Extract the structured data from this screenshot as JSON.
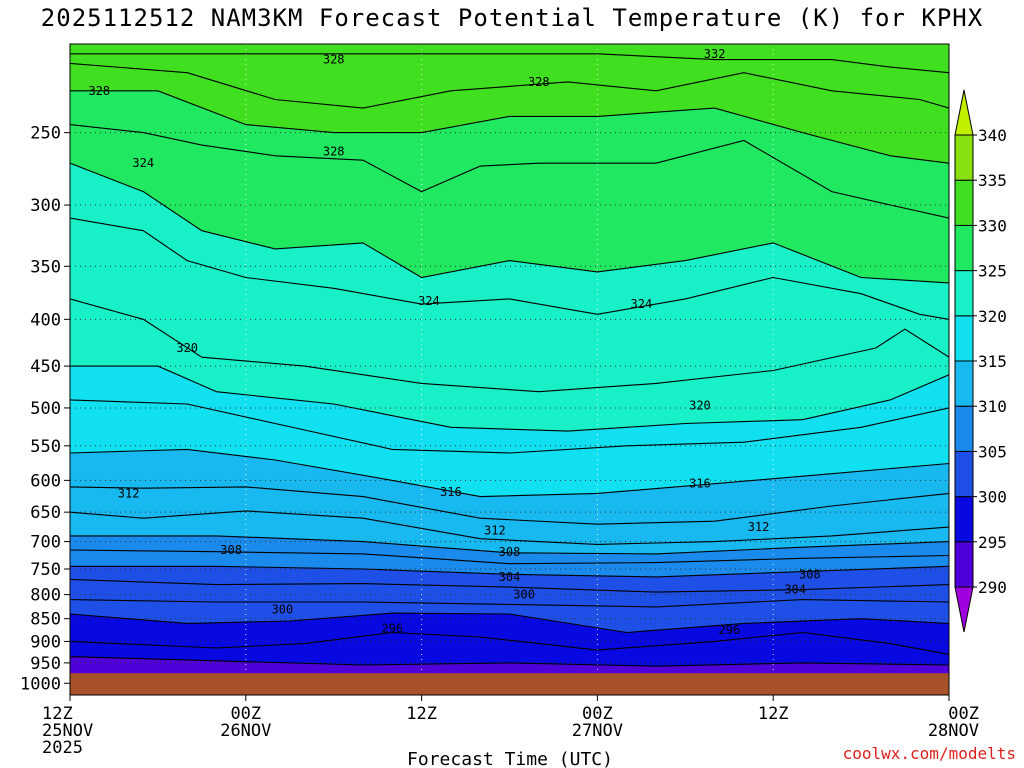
{
  "title": "2025112512 NAM3KM Forecast Potential Temperature (K) for KPHX",
  "credit": "coolwx.com/modelts",
  "chart_data": {
    "type": "heatmap",
    "title": "2025112512 NAM3KM Forecast Potential Temperature (K) for KPHX",
    "xlabel": "Forecast Time (UTC)",
    "ylabel": "",
    "x_ticks": [
      {
        "hour": 0,
        "lines": [
          "12Z",
          "25NOV",
          "2025"
        ]
      },
      {
        "hour": 12,
        "lines": [
          "00Z",
          "26NOV"
        ]
      },
      {
        "hour": 24,
        "lines": [
          "12Z"
        ]
      },
      {
        "hour": 36,
        "lines": [
          "00Z",
          "27NOV"
        ]
      },
      {
        "hour": 48,
        "lines": [
          "12Z"
        ]
      },
      {
        "hour": 60,
        "lines": [
          "00Z",
          "28NOV"
        ]
      }
    ],
    "xlim_hours": [
      0,
      60
    ],
    "y_ticks": [
      250,
      300,
      350,
      400,
      450,
      500,
      550,
      600,
      650,
      700,
      750,
      800,
      850,
      900,
      950,
      1000
    ],
    "ylim_hpa": [
      200,
      1030
    ],
    "grid": true,
    "colorbar": {
      "levels": [
        290,
        295,
        300,
        305,
        310,
        315,
        320,
        325,
        330,
        335,
        340
      ],
      "labels": [
        "290",
        "295",
        "300",
        "305",
        "310",
        "315",
        "320",
        "325",
        "330",
        "335",
        "340"
      ],
      "colors": [
        "#a000e0",
        "#5000d8",
        "#0808e0",
        "#1e50e8",
        "#1a8aec",
        "#18b8f0",
        "#10e0f0",
        "#18f0c8",
        "#20e860",
        "#40e020",
        "#88e010",
        "#c0f000"
      ]
    },
    "ground_level_hpa": 975,
    "ground_color": "#a8522a",
    "contour_labels": [
      {
        "text": "328",
        "hour": 18.0,
        "hpa": 262
      },
      {
        "text": "324",
        "hour": 24.5,
        "hpa": 382
      },
      {
        "text": "324",
        "hour": 39.0,
        "hpa": 385
      },
      {
        "text": "320",
        "hour": 43.0,
        "hpa": 497
      },
      {
        "text": "316",
        "hour": 26.0,
        "hpa": 618
      },
      {
        "text": "316",
        "hour": 43.0,
        "hpa": 605
      },
      {
        "text": "312",
        "hour": 29.0,
        "hpa": 681
      },
      {
        "text": "312",
        "hour": 47.0,
        "hpa": 675
      },
      {
        "text": "308",
        "hour": 30.0,
        "hpa": 719
      },
      {
        "text": "308",
        "hour": 50.5,
        "hpa": 760
      },
      {
        "text": "304",
        "hour": 30.0,
        "hpa": 765
      },
      {
        "text": "304",
        "hour": 49.5,
        "hpa": 790
      },
      {
        "text": "300",
        "hour": 31.0,
        "hpa": 800
      },
      {
        "text": "300",
        "hour": 14.5,
        "hpa": 830
      },
      {
        "text": "296",
        "hour": 22.0,
        "hpa": 871
      },
      {
        "text": "296",
        "hour": 45.0,
        "hpa": 874
      },
      {
        "text": "308",
        "hour": 11.0,
        "hpa": 715
      },
      {
        "text": "312",
        "hour": 4.0,
        "hpa": 620
      },
      {
        "text": "320",
        "hour": 8.0,
        "hpa": 430
      },
      {
        "text": "324",
        "hour": 5.0,
        "hpa": 270
      },
      {
        "text": "328",
        "hour": 2.0,
        "hpa": 225
      },
      {
        "text": "328",
        "hour": 18.0,
        "hpa": 208
      },
      {
        "text": "328",
        "hour": 32.0,
        "hpa": 220
      },
      {
        "text": "332",
        "hour": 44.0,
        "hpa": 205
      }
    ],
    "contour_lines": [
      {
        "level": 296,
        "points": [
          [
            0,
            935
          ],
          [
            10,
            945
          ],
          [
            20,
            955
          ],
          [
            30,
            950
          ],
          [
            40,
            958
          ],
          [
            50,
            950
          ],
          [
            60,
            955
          ]
        ]
      },
      {
        "level": 298,
        "points": [
          [
            0,
            900
          ],
          [
            10,
            915
          ],
          [
            16,
            905
          ],
          [
            22,
            880
          ],
          [
            28,
            890
          ],
          [
            36,
            920
          ],
          [
            44,
            900
          ],
          [
            50,
            880
          ],
          [
            56,
            905
          ],
          [
            60,
            930
          ]
        ]
      },
      {
        "level": 300,
        "points": [
          [
            0,
            840
          ],
          [
            8,
            860
          ],
          [
            15,
            855
          ],
          [
            22,
            838
          ],
          [
            30,
            840
          ],
          [
            38,
            880
          ],
          [
            46,
            860
          ],
          [
            54,
            850
          ],
          [
            60,
            860
          ]
        ]
      },
      {
        "level": 302,
        "points": [
          [
            0,
            810
          ],
          [
            10,
            815
          ],
          [
            20,
            815
          ],
          [
            30,
            820
          ],
          [
            40,
            825
          ],
          [
            50,
            810
          ],
          [
            60,
            815
          ]
        ]
      },
      {
        "level": 304,
        "points": [
          [
            0,
            770
          ],
          [
            10,
            780
          ],
          [
            20,
            778
          ],
          [
            30,
            785
          ],
          [
            40,
            795
          ],
          [
            50,
            790
          ],
          [
            60,
            780
          ]
        ]
      },
      {
        "level": 306,
        "points": [
          [
            0,
            745
          ],
          [
            10,
            745
          ],
          [
            20,
            750
          ],
          [
            30,
            760
          ],
          [
            40,
            765
          ],
          [
            50,
            755
          ],
          [
            60,
            745
          ]
        ]
      },
      {
        "level": 308,
        "points": [
          [
            0,
            715
          ],
          [
            10,
            718
          ],
          [
            20,
            722
          ],
          [
            30,
            740
          ],
          [
            40,
            738
          ],
          [
            50,
            730
          ],
          [
            60,
            725
          ]
        ]
      },
      {
        "level": 310,
        "points": [
          [
            0,
            690
          ],
          [
            10,
            690
          ],
          [
            20,
            700
          ],
          [
            30,
            720
          ],
          [
            40,
            722
          ],
          [
            50,
            710
          ],
          [
            60,
            700
          ]
        ]
      },
      {
        "level": 312,
        "points": [
          [
            0,
            650
          ],
          [
            5,
            660
          ],
          [
            12,
            648
          ],
          [
            20,
            660
          ],
          [
            28,
            695
          ],
          [
            36,
            705
          ],
          [
            44,
            700
          ],
          [
            52,
            690
          ],
          [
            60,
            675
          ]
        ]
      },
      {
        "level": 314,
        "points": [
          [
            0,
            610
          ],
          [
            5,
            612
          ],
          [
            12,
            610
          ],
          [
            20,
            625
          ],
          [
            28,
            660
          ],
          [
            36,
            670
          ],
          [
            44,
            665
          ],
          [
            52,
            640
          ],
          [
            60,
            620
          ]
        ]
      },
      {
        "level": 316,
        "points": [
          [
            0,
            560
          ],
          [
            8,
            555
          ],
          [
            14,
            570
          ],
          [
            22,
            600
          ],
          [
            28,
            625
          ],
          [
            36,
            620
          ],
          [
            44,
            605
          ],
          [
            52,
            590
          ],
          [
            60,
            575
          ]
        ]
      },
      {
        "level": 318,
        "points": [
          [
            0,
            490
          ],
          [
            8,
            495
          ],
          [
            14,
            520
          ],
          [
            22,
            555
          ],
          [
            30,
            560
          ],
          [
            38,
            550
          ],
          [
            46,
            545
          ],
          [
            54,
            525
          ],
          [
            60,
            500
          ]
        ]
      },
      {
        "level": 320,
        "points": [
          [
            0,
            450
          ],
          [
            6,
            450
          ],
          [
            10,
            480
          ],
          [
            18,
            495
          ],
          [
            26,
            525
          ],
          [
            34,
            530
          ],
          [
            42,
            520
          ],
          [
            50,
            515
          ],
          [
            56,
            490
          ],
          [
            60,
            460
          ]
        ]
      },
      {
        "level": 322,
        "points": [
          [
            0,
            380
          ],
          [
            5,
            400
          ],
          [
            9,
            440
          ],
          [
            16,
            450
          ],
          [
            24,
            470
          ],
          [
            32,
            480
          ],
          [
            40,
            470
          ],
          [
            48,
            455
          ],
          [
            55,
            430
          ],
          [
            57,
            410
          ],
          [
            60,
            440
          ]
        ]
      },
      {
        "level": 324,
        "points": [
          [
            0,
            310
          ],
          [
            5,
            320
          ],
          [
            8,
            345
          ],
          [
            12,
            360
          ],
          [
            18,
            370
          ],
          [
            24,
            385
          ],
          [
            30,
            380
          ],
          [
            36,
            395
          ],
          [
            42,
            380
          ],
          [
            48,
            360
          ],
          [
            54,
            375
          ],
          [
            58,
            395
          ],
          [
            60,
            400
          ]
        ]
      },
      {
        "level": 326,
        "points": [
          [
            0,
            270
          ],
          [
            5,
            290
          ],
          [
            9,
            320
          ],
          [
            14,
            335
          ],
          [
            20,
            330
          ],
          [
            24,
            360
          ],
          [
            30,
            345
          ],
          [
            36,
            355
          ],
          [
            42,
            345
          ],
          [
            48,
            330
          ],
          [
            54,
            360
          ],
          [
            60,
            365
          ]
        ]
      },
      {
        "level": 328,
        "points": [
          [
            0,
            245
          ],
          [
            5,
            250
          ],
          [
            9,
            258
          ],
          [
            14,
            265
          ],
          [
            20,
            268
          ],
          [
            24,
            290
          ],
          [
            28,
            272
          ],
          [
            32,
            270
          ],
          [
            40,
            270
          ],
          [
            46,
            255
          ],
          [
            52,
            290
          ],
          [
            56,
            300
          ],
          [
            60,
            310
          ]
        ]
      },
      {
        "level": 330,
        "points": [
          [
            0,
            225
          ],
          [
            6,
            225
          ],
          [
            12,
            245
          ],
          [
            18,
            250
          ],
          [
            24,
            250
          ],
          [
            30,
            240
          ],
          [
            36,
            240
          ],
          [
            44,
            235
          ],
          [
            50,
            250
          ],
          [
            56,
            265
          ],
          [
            60,
            270
          ]
        ]
      },
      {
        "level": 332,
        "points": [
          [
            0,
            210
          ],
          [
            8,
            215
          ],
          [
            14,
            230
          ],
          [
            20,
            235
          ],
          [
            26,
            225
          ],
          [
            34,
            220
          ],
          [
            40,
            225
          ],
          [
            46,
            215
          ],
          [
            52,
            225
          ],
          [
            58,
            230
          ],
          [
            60,
            235
          ]
        ]
      },
      {
        "level": 334,
        "points": [
          [
            36,
            205
          ],
          [
            44,
            208
          ],
          [
            52,
            208
          ],
          [
            56,
            212
          ],
          [
            60,
            215
          ]
        ]
      }
    ]
  }
}
